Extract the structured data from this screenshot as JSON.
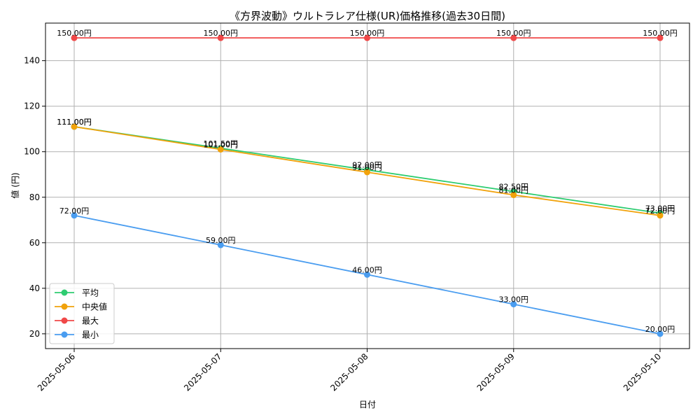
{
  "chart_data": {
    "type": "line",
    "title": "《方界波動》ウルトラレア仕様(UR)価格推移(過去30日間)",
    "xlabel": "日付",
    "ylabel": "値 (円)",
    "categories": [
      "2025-05-06",
      "2025-05-07",
      "2025-05-08",
      "2025-05-09",
      "2025-05-10"
    ],
    "ylim": [
      13.5,
      156.5
    ],
    "yticks": [
      20,
      40,
      60,
      80,
      100,
      120,
      140
    ],
    "grid": true,
    "legend_position": "lower-left",
    "value_suffix": "円",
    "series": [
      {
        "name": "平均",
        "color": "#2ecc71",
        "values": [
          111.0,
          101.5,
          92.0,
          82.5,
          73.0
        ]
      },
      {
        "name": "中央値",
        "color": "#f1a20b",
        "values": [
          111.0,
          101.0,
          91.0,
          81.0,
          72.0
        ]
      },
      {
        "name": "最大",
        "color": "#f04848",
        "values": [
          150.0,
          150.0,
          150.0,
          150.0,
          150.0
        ]
      },
      {
        "name": "最小",
        "color": "#4a9df0",
        "values": [
          72.0,
          59.0,
          46.0,
          33.0,
          20.0
        ]
      }
    ]
  }
}
